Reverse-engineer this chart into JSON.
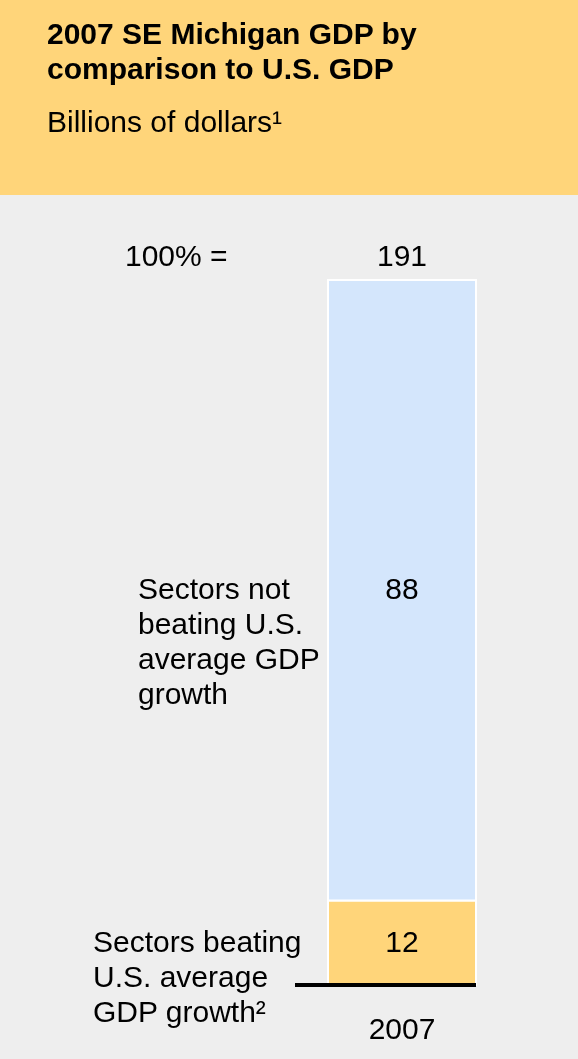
{
  "chart_data": {
    "type": "bar",
    "stacked": true,
    "title": "2007 SE Michigan GDP by comparison to U.S. GDP",
    "subtitle": "Billions of dollars¹",
    "categories": [
      "2007"
    ],
    "series": [
      {
        "name": "Sectors beating U.S. average GDP growth²",
        "color": "#FFD57A",
        "values": [
          12
        ]
      },
      {
        "name": "Sectors not beating U.S. average GDP growth",
        "color": "#D4E6FC",
        "values": [
          88
        ]
      }
    ],
    "data_labels": true,
    "annotations": [
      "100% =",
      "191"
    ],
    "tick_labels": "x",
    "legend": false
  }
}
